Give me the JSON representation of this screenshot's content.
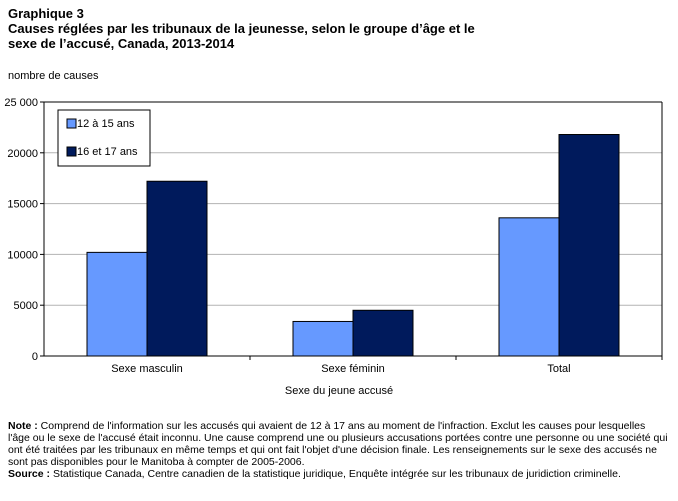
{
  "heading": {
    "label": "Graphique 3",
    "title_line1": "Causes réglées par les tribunaux de la jeunesse, selon le groupe d’âge et le",
    "title_line2": "sexe de l’accusé, Canada, 2013-2014"
  },
  "chart_data": {
    "type": "bar",
    "categories": [
      "Sexe masculin",
      "Sexe féminin",
      "Total"
    ],
    "series": [
      {
        "name": "12 à 15 ans",
        "values": [
          10200,
          3400,
          13600
        ],
        "color": "#6699ff"
      },
      {
        "name": "16 et 17 ans",
        "values": [
          17200,
          4500,
          21800
        ],
        "color": "#001a5c"
      }
    ],
    "ylabel": "nombre de causes",
    "xlabel": "Sexe du jeune accusé",
    "ylim": [
      0,
      25000
    ],
    "yticks": [
      0,
      5000,
      10000,
      15000,
      20000,
      25000
    ],
    "ytick_labels": [
      "0",
      "5000",
      "10000",
      "15000",
      "20000",
      "25 000"
    ],
    "grid": true,
    "legend_position": "top-left"
  },
  "notes": {
    "note_label": "Note :",
    "note_text": "Comprend de l'information sur les accusés qui avaient de 12 à 17 ans au moment de l'infraction. Exclut les causes pour lesquelles l'âge ou le sexe de l'accusé était inconnu. Une cause comprend une ou plusieurs accusations portées contre une personne ou une société qui ont été traitées par les tribunaux en même temps et qui ont fait l'objet d'une décision finale. Les renseignements sur le sexe des accusés ne sont pas disponibles pour le Manitoba à compter de 2005-2006.",
    "source_label": "Source :",
    "source_text": "Statistique Canada, Centre canadien de la statistique juridique, Enquête intégrée sur les tribunaux de juridiction criminelle."
  }
}
